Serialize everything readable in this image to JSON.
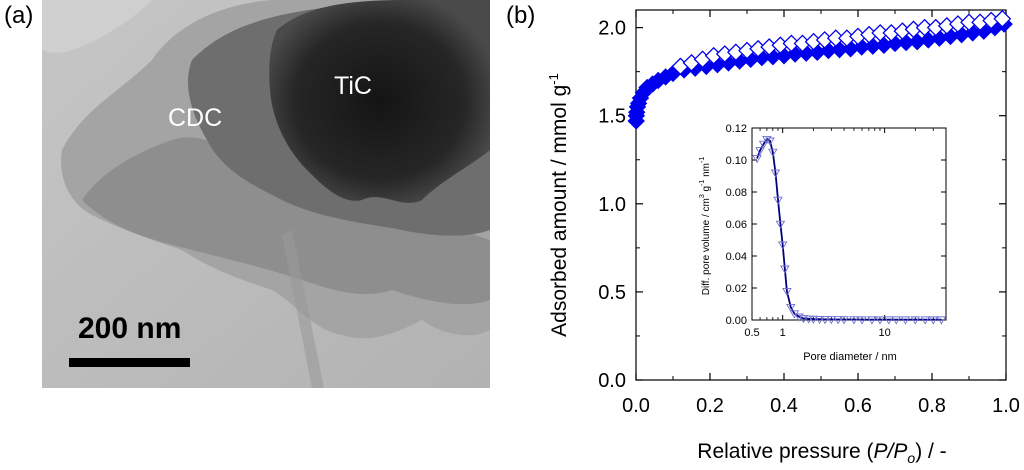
{
  "panel_a": {
    "label": "(a)",
    "labels": {
      "tic": "TiC",
      "cdc": "CDC"
    },
    "scale_bar": "200 nm"
  },
  "panel_b": {
    "label": "(b)"
  },
  "chart_data": [
    {
      "type": "scatter",
      "xlabel_parts": [
        "Relative pressure (",
        "P/P",
        "o",
        ") / -"
      ],
      "ylabel_parts": [
        "Adsorbed amount / mmol g",
        "-1"
      ],
      "xlim": [
        0.0,
        1.0
      ],
      "ylim": [
        0.0,
        2.1
      ],
      "xticks": [
        "0.0",
        "0.2",
        "0.4",
        "0.6",
        "0.8",
        "1.0"
      ],
      "yticks": [
        "0.0",
        "0.5",
        "1.0",
        "1.5",
        "2.0"
      ],
      "color": "#0000ee",
      "series": [
        {
          "marker": "filled-diamond",
          "x": [
            0.0005,
            0.001,
            0.002,
            0.004,
            0.007,
            0.012,
            0.02,
            0.03,
            0.045,
            0.06,
            0.08,
            0.1,
            0.13,
            0.16,
            0.19,
            0.22,
            0.25,
            0.28,
            0.31,
            0.34,
            0.37,
            0.4,
            0.43,
            0.46,
            0.49,
            0.52,
            0.55,
            0.58,
            0.61,
            0.64,
            0.67,
            0.7,
            0.73,
            0.76,
            0.79,
            0.82,
            0.85,
            0.88,
            0.91,
            0.94,
            0.97,
            0.995
          ],
          "y": [
            1.47,
            1.5,
            1.52,
            1.55,
            1.57,
            1.6,
            1.63,
            1.66,
            1.68,
            1.7,
            1.72,
            1.74,
            1.76,
            1.77,
            1.78,
            1.79,
            1.8,
            1.81,
            1.82,
            1.83,
            1.835,
            1.84,
            1.85,
            1.855,
            1.86,
            1.87,
            1.875,
            1.88,
            1.89,
            1.895,
            1.9,
            1.91,
            1.915,
            1.92,
            1.93,
            1.94,
            1.95,
            1.96,
            1.97,
            1.98,
            2.0,
            2.02
          ]
        },
        {
          "marker": "open-diamond",
          "x": [
            0.12,
            0.15,
            0.18,
            0.21,
            0.24,
            0.27,
            0.3,
            0.33,
            0.36,
            0.39,
            0.42,
            0.45,
            0.48,
            0.51,
            0.54,
            0.57,
            0.6,
            0.63,
            0.66,
            0.69,
            0.72,
            0.75,
            0.78,
            0.81,
            0.84,
            0.87,
            0.9,
            0.93,
            0.96,
            0.99
          ],
          "y": [
            1.78,
            1.8,
            1.82,
            1.84,
            1.85,
            1.86,
            1.87,
            1.88,
            1.89,
            1.9,
            1.91,
            1.91,
            1.92,
            1.93,
            1.94,
            1.94,
            1.95,
            1.96,
            1.97,
            1.97,
            1.98,
            1.99,
            2.0,
            2.0,
            2.01,
            2.02,
            2.03,
            2.03,
            2.04,
            2.05
          ]
        }
      ]
    },
    {
      "type": "line",
      "inset": true,
      "xlabel": "Pore diameter / nm",
      "ylabel_parts": [
        "Diff. pore volume / cm",
        "3",
        " g",
        "-1",
        " nm",
        "-1"
      ],
      "x_scale": "log",
      "xlim": [
        0.5,
        40
      ],
      "ylim": [
        0.0,
        0.12
      ],
      "xticks": [
        {
          "value": 0.5,
          "label": "0.5"
        },
        {
          "value": 1,
          "label": "1"
        },
        {
          "value": 10,
          "label": "10"
        }
      ],
      "yticks": [
        "0.00",
        "0.02",
        "0.04",
        "0.06",
        "0.08",
        "0.10",
        "0.12"
      ],
      "line_color": "#000080",
      "marker_color": "#7070d0",
      "series": [
        {
          "marker": "open-triangle",
          "x": [
            0.56,
            0.6,
            0.65,
            0.7,
            0.75,
            0.8,
            0.85,
            0.9,
            0.95,
            1.0,
            1.05,
            1.1,
            1.2,
            1.3,
            1.45,
            1.6,
            1.8,
            2.0,
            2.3,
            2.6,
            3.0,
            3.5,
            4.0,
            5.0,
            6.0,
            7.5,
            9.0,
            11,
            13,
            16,
            20,
            25,
            30,
            36
          ],
          "y": [
            0.101,
            0.106,
            0.11,
            0.113,
            0.112,
            0.105,
            0.092,
            0.075,
            0.06,
            0.047,
            0.032,
            0.018,
            0.008,
            0.004,
            0.002,
            0.001,
            0.0008,
            0.0006,
            0.0005,
            0.0004,
            0.0004,
            0.0003,
            0.0003,
            0.0003,
            0.0002,
            0.0002,
            0.0002,
            0.0002,
            0.0002,
            0.0002,
            0.0002,
            0.0002,
            0.0002,
            0.0002
          ]
        }
      ]
    }
  ]
}
